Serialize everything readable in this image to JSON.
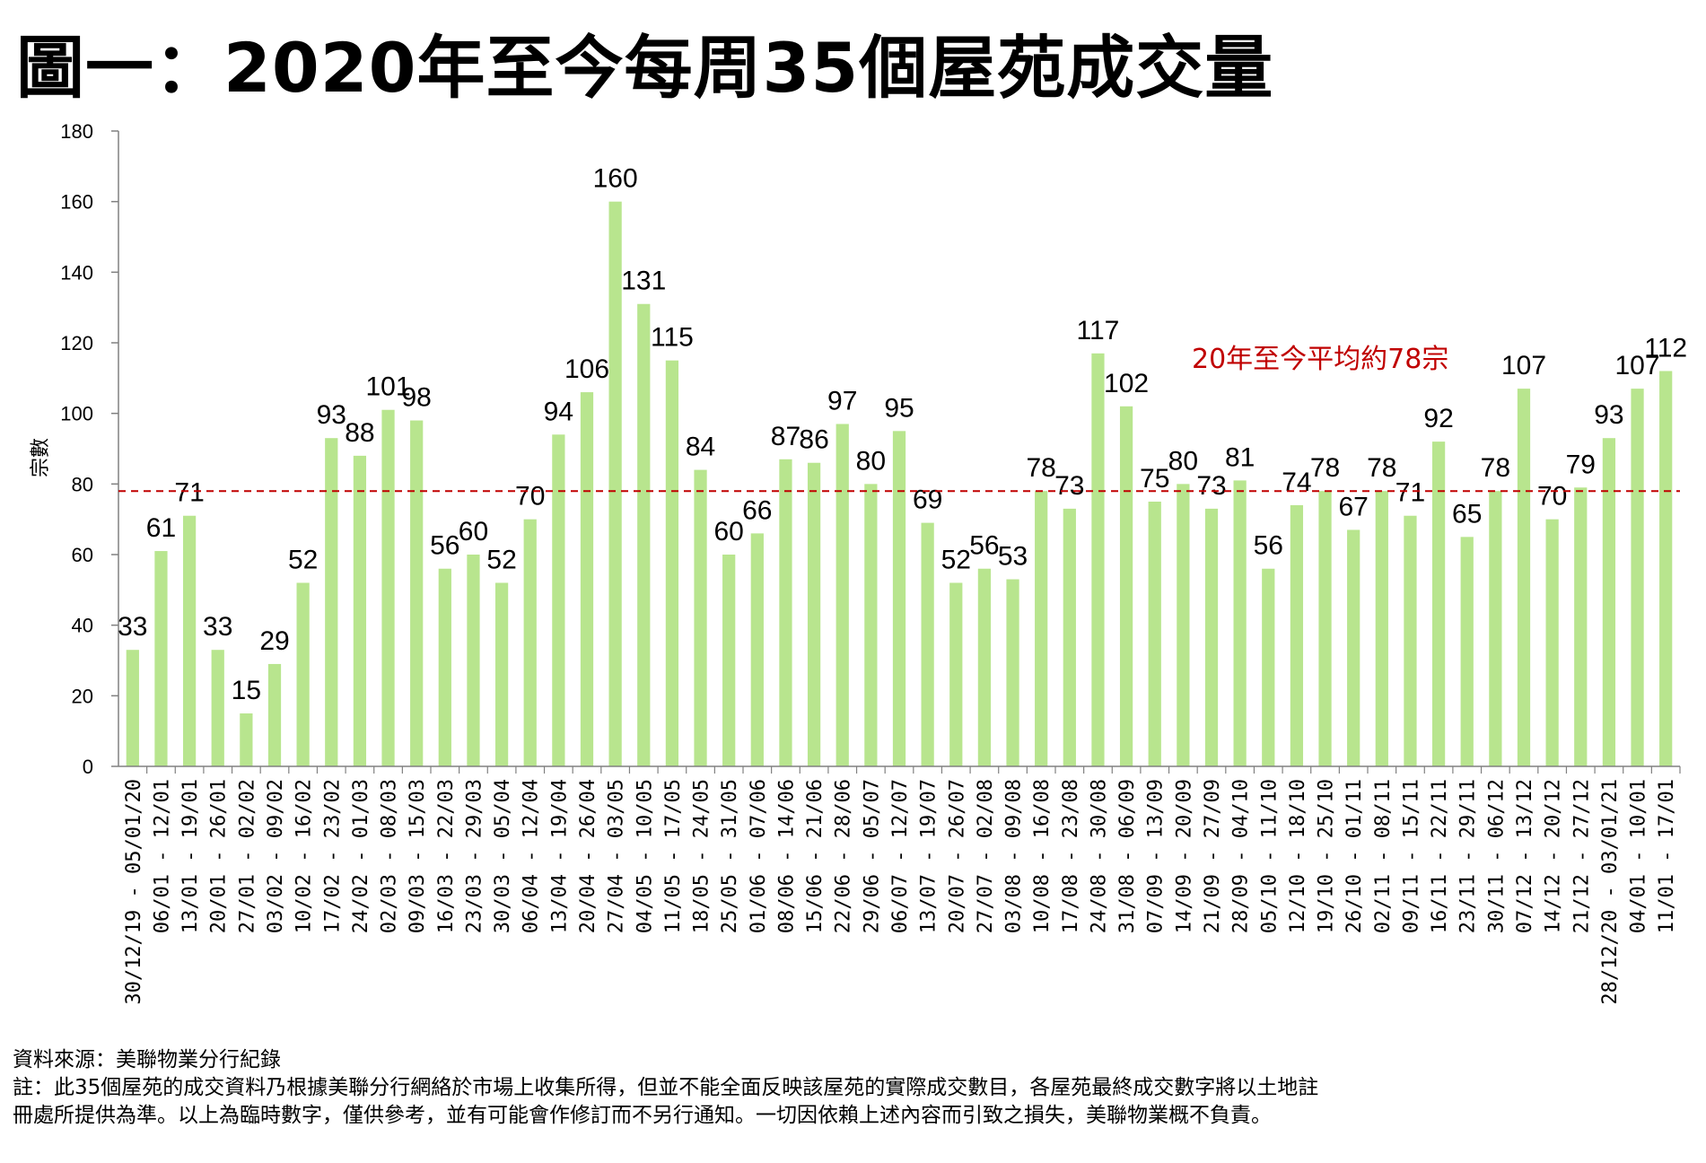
{
  "title": "圖一：2020年至今每周35個屋苑成交量",
  "footer": {
    "source": "資料來源：美聯物業分行紀錄",
    "note_line1": "註：此35個屋苑的成交資料乃根據美聯分行網絡於市場上收集所得，但並不能全面反映該屋苑的實際成交數目，各屋苑最終成交數字將以土地註",
    "note_line2": "冊處所提供為準。以上為臨時數字，僅供參考，並有可能會作修訂而不另行通知。一切因依賴上述內容而引致之損失，美聯物業概不負責。"
  },
  "colors": {
    "bar": "#b8e58e",
    "average": "#c00000",
    "axis": "#808080"
  },
  "chart_data": {
    "type": "bar",
    "title": "",
    "ylabel": "宗數",
    "xlabel": "",
    "ylim": [
      0,
      180
    ],
    "yticks": [
      0,
      20,
      40,
      60,
      80,
      100,
      120,
      140,
      160,
      180
    ],
    "grid": false,
    "average": {
      "value": 78,
      "label": "20年至今平均約78宗",
      "style": "dashed"
    },
    "categories": [
      "30/12/19 - 05/01/20",
      "06/01 - 12/01",
      "13/01 - 19/01",
      "20/01 - 26/01",
      "27/01 - 02/02",
      "03/02 - 09/02",
      "10/02 - 16/02",
      "17/02 - 23/02",
      "24/02 - 01/03",
      "02/03 - 08/03",
      "09/03 - 15/03",
      "16/03 - 22/03",
      "23/03 - 29/03",
      "30/03 - 05/04",
      "06/04 - 12/04",
      "13/04 - 19/04",
      "20/04 - 26/04",
      "27/04 - 03/05",
      "04/05 - 10/05",
      "11/05 - 17/05",
      "18/05 - 24/05",
      "25/05 - 31/05",
      "01/06 - 07/06",
      "08/06 - 14/06",
      "15/06 - 21/06",
      "22/06 - 28/06",
      "29/06 - 05/07",
      "06/07 - 12/07",
      "13/07 - 19/07",
      "20/07 - 26/07",
      "27/07 - 02/08",
      "03/08 - 09/08",
      "10/08 - 16/08",
      "17/08 - 23/08",
      "24/08 - 30/08",
      "31/08 - 06/09",
      "07/09 - 13/09",
      "14/09 - 20/09",
      "21/09 - 27/09",
      "28/09 - 04/10",
      "05/10 - 11/10",
      "12/10 - 18/10",
      "19/10 - 25/10",
      "26/10 - 01/11",
      "02/11 - 08/11",
      "09/11 - 15/11",
      "16/11 - 22/11",
      "23/11 - 29/11",
      "30/11 - 06/12",
      "07/12 - 13/12",
      "14/12 - 20/12",
      "21/12 - 27/12",
      "28/12/20 - 03/01/21",
      "04/01 - 10/01",
      "11/01 - 17/01"
    ],
    "values": [
      33,
      61,
      71,
      33,
      15,
      29,
      52,
      93,
      88,
      101,
      98,
      56,
      60,
      52,
      70,
      94,
      106,
      160,
      131,
      115,
      84,
      60,
      66,
      87,
      86,
      97,
      80,
      95,
      69,
      52,
      56,
      53,
      78,
      73,
      117,
      102,
      75,
      80,
      73,
      81,
      56,
      74,
      78,
      67,
      78,
      71,
      92,
      65,
      78,
      107,
      70,
      79,
      93,
      107,
      112
    ]
  }
}
